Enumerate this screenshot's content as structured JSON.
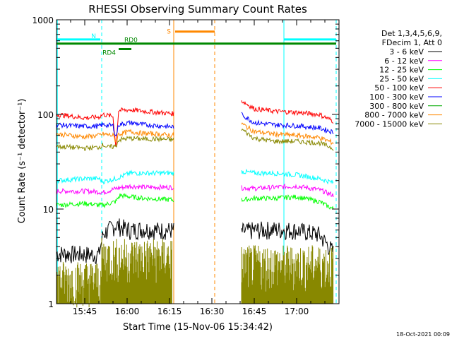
{
  "chart_data": {
    "type": "line",
    "title": "RHESSI Observing Summary Count Rates",
    "xlabel": "Start Time (15-Nov-06 15:34:42)",
    "ylabel": "Count Rate (s⁻¹ detector⁻¹)",
    "y_scale": "log",
    "ylim": [
      1,
      1000
    ],
    "xlim_minutes_of_day": [
      935,
      1035
    ],
    "x_ticks": [
      {
        "label": "15:45",
        "minute": 945
      },
      {
        "label": "16:00",
        "minute": 960
      },
      {
        "label": "16:15",
        "minute": 975
      },
      {
        "label": "16:30",
        "minute": 990
      },
      {
        "label": "16:45",
        "minute": 1005
      },
      {
        "label": "17:00",
        "minute": 1020
      }
    ],
    "y_ticks": [
      {
        "label": "1",
        "value": 1
      },
      {
        "label": "10",
        "value": 10
      },
      {
        "label": "100",
        "value": 100
      },
      {
        "label": "1000",
        "value": 1000
      }
    ],
    "legend": {
      "placement": "right",
      "header": [
        "Det 1,3,4,5,6,9,",
        "FDecim 1, Att 0"
      ]
    },
    "data_gap": {
      "start": 976.5,
      "end": 1000
    },
    "series": [
      {
        "name": "3 - 6 keV",
        "color": "#000000",
        "x": [
          935,
          950,
          951.5,
          956,
          961,
          966,
          971,
          976,
          1000.5,
          1005,
          1012,
          1020,
          1028,
          1033
        ],
        "y": [
          3.4,
          3.3,
          5.5,
          6.8,
          6.0,
          6.2,
          6.0,
          6.0,
          5.8,
          6.0,
          6.1,
          6.0,
          5.4,
          3.5
        ]
      },
      {
        "name": "6 - 12 keV",
        "color": "#ff00ff",
        "x": [
          935,
          945,
          950,
          951.5,
          956,
          961,
          966,
          971,
          976,
          1000.5,
          1005,
          1012,
          1020,
          1028,
          1033
        ],
        "y": [
          15.5,
          15.5,
          15.2,
          15.0,
          16.5,
          17.5,
          17.0,
          17.0,
          17.0,
          16.8,
          16.5,
          17.0,
          17.5,
          16.0,
          14.0
        ]
      },
      {
        "name": "12 - 25 keV",
        "color": "#00ff00",
        "x": [
          935,
          945,
          950,
          951.5,
          956,
          957.5,
          961,
          966,
          971,
          976,
          1000.5,
          1005,
          1012,
          1020,
          1028,
          1033
        ],
        "y": [
          11.0,
          11.5,
          11.0,
          11.0,
          12.0,
          14.0,
          13.5,
          13.0,
          12.8,
          12.5,
          12.5,
          13.0,
          13.0,
          13.5,
          12.0,
          10.0
        ]
      },
      {
        "name": "25 - 50 keV",
        "color": "#00ffff",
        "x": [
          935,
          945,
          950,
          951.5,
          956,
          961,
          966,
          971,
          976,
          1000.5,
          1005,
          1012,
          1020,
          1028,
          1033
        ],
        "y": [
          20.0,
          21.0,
          21.0,
          19.5,
          21.0,
          24.0,
          24.0,
          24.0,
          24.0,
          25.0,
          24.0,
          24.0,
          23.0,
          21.0,
          19.0
        ]
      },
      {
        "name": "50 - 100 keV",
        "color": "#ff0000",
        "x": [
          935,
          940,
          945,
          950,
          951.5,
          955,
          956,
          957,
          961,
          966,
          971,
          976,
          1000.5,
          1005,
          1012,
          1020,
          1028,
          1033
        ],
        "y": [
          100,
          96,
          92,
          94,
          100,
          95,
          45,
          110,
          112,
          108,
          105,
          102,
          140,
          115,
          108,
          105,
          100,
          85
        ]
      },
      {
        "name": "100 - 300 keV",
        "color": "#0000ff",
        "x": [
          935,
          940,
          945,
          950,
          951.5,
          955,
          956,
          957,
          961,
          966,
          971,
          976,
          1000.5,
          1005,
          1012,
          1020,
          1028,
          1033
        ],
        "y": [
          78,
          76,
          75,
          75,
          78,
          76,
          58,
          78,
          82,
          78,
          76,
          74,
          100,
          82,
          78,
          76,
          72,
          65
        ]
      },
      {
        "name": "300 - 800 keV",
        "color": "#00aa00",
        "x": [],
        "y": []
      },
      {
        "name": "800 - 7000 keV",
        "color": "#ff8800",
        "x": [
          935,
          940,
          945,
          950,
          951.5,
          955,
          956,
          957,
          961,
          966,
          971,
          976,
          1000.5,
          1005,
          1012,
          1020,
          1028,
          1033
        ],
        "y": [
          62,
          60,
          58,
          60,
          62,
          60,
          52,
          62,
          66,
          63,
          62,
          60,
          80,
          66,
          62,
          60,
          57,
          50
        ]
      },
      {
        "name": "7000 - 15000 keV",
        "color": "#888800",
        "x": [
          935,
          940,
          945,
          950,
          951.5,
          953,
          956,
          957,
          961,
          966,
          971,
          976,
          1000.5,
          1005,
          1012,
          1020,
          1028,
          1033
        ],
        "y": [
          46,
          45,
          44,
          45,
          48,
          45,
          46,
          54,
          56,
          55,
          55,
          54,
          70,
          56,
          52,
          52,
          50,
          44
        ]
      }
    ],
    "low_count_traces": [
      {
        "color": "#888800",
        "x": [
          935,
          951
        ],
        "y": [
          1.5,
          1.5
        ]
      },
      {
        "color": "#888800",
        "x": [
          951,
          976
        ],
        "y": [
          2.6,
          2.6
        ]
      },
      {
        "color": "#888800",
        "x": [
          1000.5,
          1033
        ],
        "y": [
          2.2,
          2.2
        ]
      }
    ],
    "flag_bars": [
      {
        "label": "N",
        "color": "#00ffff",
        "segments": [
          [
            935,
            950.5
          ],
          [
            1015.5,
            1034
          ]
        ],
        "level": 620
      },
      {
        "label": "S",
        "color": "#ff8800",
        "segments": [
          [
            977,
            991
          ]
        ],
        "level": 750
      },
      {
        "label": "RD0",
        "color": "#008800",
        "segments": [
          [
            935,
            1034
          ]
        ],
        "level": 560
      },
      {
        "label": "RD4",
        "color": "#008800",
        "segments": [
          [
            957,
            961.5
          ]
        ],
        "level": 490
      }
    ],
    "vertical_markers": [
      {
        "color": "#00ffff",
        "style": "solid",
        "x": 935.3
      },
      {
        "color": "#00ffff",
        "style": "dashed",
        "x": 951
      },
      {
        "color": "#ff8800",
        "style": "solid",
        "x": 976.5
      },
      {
        "color": "#ff8800",
        "style": "dashed",
        "x": 991
      },
      {
        "color": "#00ffff",
        "style": "solid",
        "x": 1015.5
      },
      {
        "color": "#00ffff",
        "style": "dashed",
        "x": 1034
      }
    ],
    "grid": false
  },
  "footer": {
    "timestamp": "18-Oct-2021 00:09"
  }
}
